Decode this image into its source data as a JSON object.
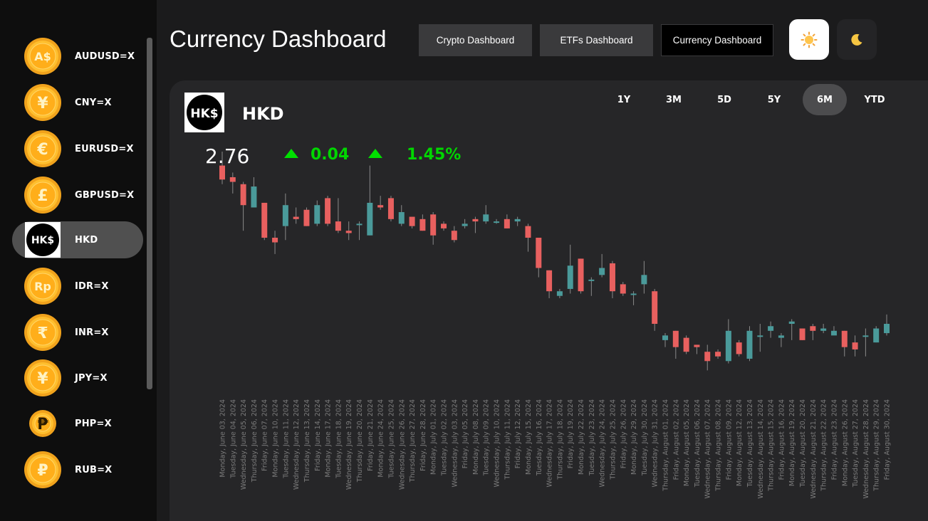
{
  "header": {
    "title": "Currency Dashboard",
    "nav": [
      {
        "label": "Crypto Dashboard",
        "active": false
      },
      {
        "label": "ETFs Dashboard",
        "active": false
      },
      {
        "label": "Currency Dashboard",
        "active": true
      }
    ],
    "theme_buttons": [
      {
        "icon": "sun-icon",
        "active": true
      },
      {
        "icon": "moon-icon",
        "active": false
      }
    ]
  },
  "sidebar": {
    "items": [
      {
        "label": "AUDUSD=X",
        "icon": "aud-coin-icon",
        "glyph": "A$",
        "active": false
      },
      {
        "label": "CNY=X",
        "icon": "yuan-coin-icon",
        "glyph": "¥",
        "active": false
      },
      {
        "label": "EURUSD=X",
        "icon": "euro-coin-icon",
        "glyph": "€",
        "active": false
      },
      {
        "label": "GBPUSD=X",
        "icon": "pound-coin-icon",
        "glyph": "£",
        "active": false
      },
      {
        "label": "HKD",
        "icon": "hkd-logo-icon",
        "glyph": "HK$",
        "active": true
      },
      {
        "label": "IDR=X",
        "icon": "rupiah-coin-icon",
        "glyph": "Rp",
        "active": false
      },
      {
        "label": "INR=X",
        "icon": "rupee-coin-icon",
        "glyph": "₹",
        "active": false
      },
      {
        "label": "JPY=X",
        "icon": "yen-coin-icon",
        "glyph": "¥",
        "active": false
      },
      {
        "label": "PHP=X",
        "icon": "peso-coin-icon",
        "glyph": "₱",
        "active": false
      },
      {
        "label": "RUB=X",
        "icon": "ruble-coin-icon",
        "glyph": "₽",
        "active": false
      }
    ]
  },
  "asset": {
    "logo_text": "HK$",
    "name": "HKD",
    "price": "2.76",
    "change": "0.04",
    "change_pct": "1.45%",
    "change_direction": "up"
  },
  "ranges": [
    {
      "label": "1Y",
      "active": false
    },
    {
      "label": "3M",
      "active": false
    },
    {
      "label": "5D",
      "active": false
    },
    {
      "label": "5Y",
      "active": false
    },
    {
      "label": "6M",
      "active": true
    },
    {
      "label": "YTD",
      "active": false
    }
  ],
  "colors": {
    "up": "#4a9a9a",
    "down": "#e8605f",
    "change_positive": "#00d600",
    "coin_gold": "#f5a623"
  },
  "chart_data": {
    "type": "candlestick",
    "x": [
      "Monday, June 03, 2024",
      "Tuesday, June 04, 2024",
      "Wednesday, June 05, 2024",
      "Thursday, June 06, 2024",
      "Friday, June 07, 2024",
      "Monday, June 10, 2024",
      "Tuesday, June 11, 2024",
      "Wednesday, June 12, 2024",
      "Thursday, June 13, 2024",
      "Friday, June 14, 2024",
      "Monday, June 17, 2024",
      "Tuesday, June 18, 2024",
      "Wednesday, June 19, 2024",
      "Thursday, June 20, 2024",
      "Friday, June 21, 2024",
      "Monday, June 24, 2024",
      "Tuesday, June 25, 2024",
      "Wednesday, June 26, 2024",
      "Thursday, June 27, 2024",
      "Friday, June 28, 2024",
      "Monday, July 01, 2024",
      "Tuesday, July 02, 2024",
      "Wednesday, July 03, 2024",
      "Friday, July 05, 2024",
      "Monday, July 08, 2024",
      "Tuesday, July 09, 2024",
      "Wednesday, July 10, 2024",
      "Thursday, July 11, 2024",
      "Friday, July 12, 2024",
      "Monday, July 15, 2024",
      "Tuesday, July 16, 2024",
      "Wednesday, July 17, 2024",
      "Thursday, July 18, 2024",
      "Friday, July 19, 2024",
      "Monday, July 22, 2024",
      "Tuesday, July 23, 2024",
      "Wednesday, July 24, 2024",
      "Thursday, July 25, 2024",
      "Friday, July 26, 2024",
      "Monday, July 29, 2024",
      "Tuesday, July 30, 2024",
      "Wednesday, July 31, 2024",
      "Thursday, August 01, 2024",
      "Friday, August 02, 2024",
      "Monday, August 05, 2024",
      "Tuesday, August 06, 2024",
      "Wednesday, August 07, 2024",
      "Thursday, August 08, 2024",
      "Friday, August 09, 2024",
      "Monday, August 12, 2024",
      "Tuesday, August 13, 2024",
      "Wednesday, August 14, 2024",
      "Thursday, August 15, 2024",
      "Friday, August 16, 2024",
      "Monday, August 19, 2024",
      "Tuesday, August 20, 2024",
      "Wednesday, August 21, 2024",
      "Thursday, August 22, 2024",
      "Friday, August 23, 2024",
      "Monday, August 26, 2024",
      "Tuesday, August 27, 2024",
      "Wednesday, August 28, 2024",
      "Thursday, August 29, 2024",
      "Friday, August 30, 2024"
    ],
    "candles": [
      [
        0.94,
        0.88,
        1.0,
        0.86
      ],
      [
        0.89,
        0.87,
        0.91,
        0.82
      ],
      [
        0.86,
        0.77,
        0.87,
        0.66
      ],
      [
        0.76,
        0.85,
        0.89,
        0.76
      ],
      [
        0.78,
        0.63,
        0.78,
        0.62
      ],
      [
        0.63,
        0.61,
        0.66,
        0.56
      ],
      [
        0.68,
        0.77,
        0.82,
        0.62
      ],
      [
        0.72,
        0.71,
        0.76,
        0.69
      ],
      [
        0.75,
        0.68,
        0.76,
        0.68
      ],
      [
        0.69,
        0.77,
        0.79,
        0.68
      ],
      [
        0.8,
        0.69,
        0.81,
        0.68
      ],
      [
        0.7,
        0.66,
        0.8,
        0.65
      ],
      [
        0.66,
        0.65,
        0.7,
        0.62
      ],
      [
        0.69,
        0.69,
        0.7,
        0.62
      ],
      [
        0.64,
        0.78,
        0.94,
        0.64
      ],
      [
        0.77,
        0.76,
        0.81,
        0.75
      ],
      [
        0.8,
        0.71,
        0.81,
        0.7
      ],
      [
        0.69,
        0.74,
        0.77,
        0.68
      ],
      [
        0.72,
        0.68,
        0.72,
        0.67
      ],
      [
        0.71,
        0.66,
        0.73,
        0.66
      ],
      [
        0.73,
        0.64,
        0.74,
        0.6
      ],
      [
        0.69,
        0.67,
        0.7,
        0.66
      ],
      [
        0.66,
        0.62,
        0.68,
        0.61
      ],
      [
        0.68,
        0.69,
        0.71,
        0.67
      ],
      [
        0.71,
        0.7,
        0.72,
        0.65
      ],
      [
        0.7,
        0.73,
        0.77,
        0.69
      ],
      [
        0.7,
        0.7,
        0.71,
        0.69
      ],
      [
        0.71,
        0.67,
        0.73,
        0.67
      ],
      [
        0.7,
        0.71,
        0.72,
        0.68
      ],
      [
        0.68,
        0.63,
        0.69,
        0.57
      ],
      [
        0.63,
        0.5,
        0.63,
        0.46
      ],
      [
        0.49,
        0.4,
        0.49,
        0.37
      ],
      [
        0.38,
        0.4,
        0.41,
        0.37
      ],
      [
        0.41,
        0.51,
        0.6,
        0.39
      ],
      [
        0.54,
        0.4,
        0.54,
        0.39
      ],
      [
        0.45,
        0.45,
        0.46,
        0.38
      ],
      [
        0.47,
        0.5,
        0.56,
        0.46
      ],
      [
        0.52,
        0.4,
        0.53,
        0.37
      ],
      [
        0.43,
        0.39,
        0.44,
        0.38
      ],
      [
        0.39,
        0.39,
        0.4,
        0.34
      ],
      [
        0.43,
        0.47,
        0.53,
        0.39
      ],
      [
        0.4,
        0.26,
        0.41,
        0.23
      ],
      [
        0.19,
        0.21,
        0.22,
        0.16
      ],
      [
        0.23,
        0.16,
        0.23,
        0.11
      ],
      [
        0.2,
        0.14,
        0.21,
        0.13
      ],
      [
        0.17,
        0.16,
        0.17,
        0.13
      ],
      [
        0.14,
        0.1,
        0.17,
        0.06
      ],
      [
        0.14,
        0.12,
        0.15,
        0.11
      ],
      [
        0.1,
        0.23,
        0.28,
        0.09
      ],
      [
        0.18,
        0.13,
        0.19,
        0.12
      ],
      [
        0.11,
        0.23,
        0.25,
        0.1
      ],
      [
        0.21,
        0.21,
        0.26,
        0.14
      ],
      [
        0.23,
        0.25,
        0.27,
        0.2
      ],
      [
        0.2,
        0.21,
        0.22,
        0.16
      ],
      [
        0.26,
        0.27,
        0.28,
        0.19
      ],
      [
        0.24,
        0.19,
        0.24,
        0.19
      ],
      [
        0.25,
        0.23,
        0.26,
        0.19
      ],
      [
        0.23,
        0.24,
        0.26,
        0.22
      ],
      [
        0.21,
        0.23,
        0.25,
        0.22
      ],
      [
        0.23,
        0.16,
        0.23,
        0.12
      ],
      [
        0.18,
        0.15,
        0.21,
        0.12
      ],
      [
        0.21,
        0.21,
        0.24,
        0.12
      ],
      [
        0.18,
        0.24,
        0.25,
        0.18
      ],
      [
        0.22,
        0.26,
        0.3,
        0.21
      ]
    ],
    "candle_format": [
      "open",
      "close",
      "high",
      "low"
    ],
    "y_scale": "relative (no y-axis printed)",
    "grid": false,
    "legend": "none"
  }
}
